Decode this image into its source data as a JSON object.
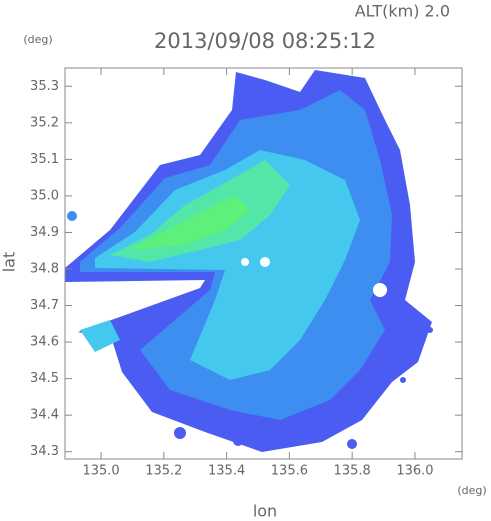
{
  "chart_data": {
    "type": "radar-map",
    "subtitle": "ALT(km) 2.0",
    "title": "2013/09/08 08:25:12",
    "x_label": "lon",
    "y_label": "lat",
    "x_unit": "(deg)",
    "y_unit": "(deg)",
    "xlim": [
      134.885,
      136.15
    ],
    "ylim": [
      34.28,
      35.35
    ],
    "xticks": [
      {
        "value": 135.0,
        "label": "135.0"
      },
      135.2,
      135.4,
      135.6,
      135.8,
      {
        "value": 136.0,
        "label": "136.0"
      }
    ],
    "yticks": [
      34.3,
      34.4,
      34.5,
      34.6,
      34.7,
      34.8,
      34.9,
      {
        "value": 35.0,
        "label": "35.0"
      },
      35.1,
      35.2,
      35.3
    ]
  }
}
